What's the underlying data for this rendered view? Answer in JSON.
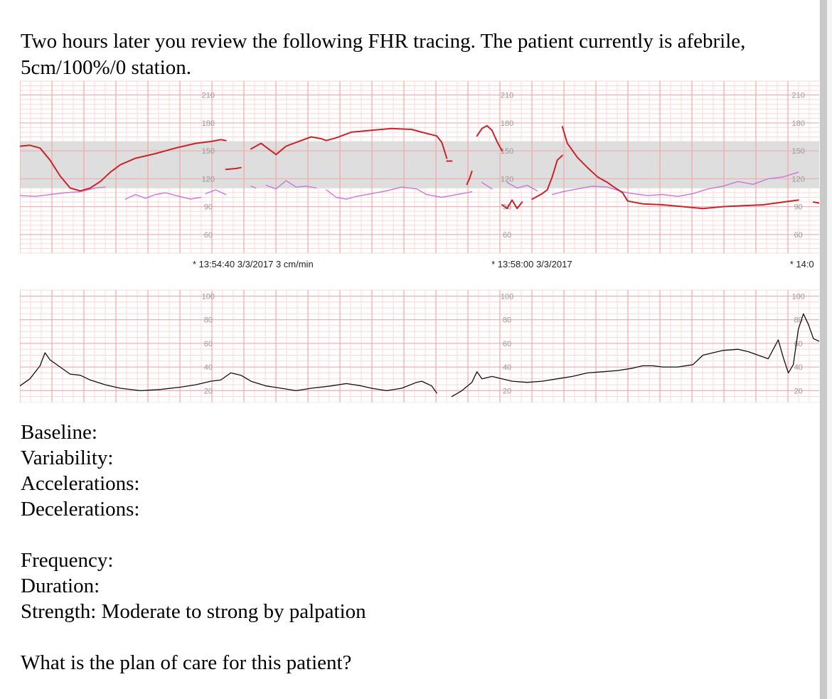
{
  "intro": {
    "line1": "Two hours later you review the following FHR tracing. The patient currently is afebrile,",
    "line2": "5cm/100%/0 station."
  },
  "questions": {
    "baseline": "Baseline:",
    "variability": "Variability:",
    "accelerations": "Accelerations:",
    "decelerations": "Decelerations:",
    "frequency": "Frequency:",
    "duration": "Duration:",
    "strength": "Strength: Moderate to strong by palpation",
    "plan": "What is the plan of care for this patient?"
  },
  "chart_data": [
    {
      "type": "line",
      "title": "",
      "ylabel": "",
      "tick_labels": [
        "210",
        "180",
        "150",
        "120",
        "90",
        "60"
      ],
      "ylim": [
        40,
        225
      ],
      "shaded_band": [
        110,
        160
      ],
      "annotations": [
        "* 13:54:40 3/3/2017  3 cm/min",
        "* 13:58:00 3/3/2017",
        "* 14:0"
      ],
      "colors": {
        "fhr": "#c8242b",
        "mhr": "#c878d8",
        "grid_major": "#f2a6a6",
        "grid_minor": "#fbd8d8",
        "band": "#dedede"
      },
      "series": [
        {
          "segments": [
            [
              [
                0,
                155
              ],
              [
                2,
                156
              ],
              [
                4,
                153
              ],
              [
                6,
                140
              ],
              [
                8,
                123
              ],
              [
                10,
                110
              ],
              [
                12,
                107
              ],
              [
                14,
                110
              ],
              [
                16,
                117
              ],
              [
                18,
                127
              ],
              [
                20,
                135
              ],
              [
                23,
                142
              ],
              [
                27,
                147
              ],
              [
                31,
                153
              ],
              [
                35,
                158
              ],
              [
                38,
                160
              ],
              [
                40,
                162
              ],
              [
                41,
                161
              ]
            ],
            [
              [
                41,
                130
              ],
              [
                43,
                131
              ],
              [
                44,
                132
              ]
            ],
            [
              [
                46,
                152
              ],
              [
                48,
                158
              ],
              [
                50,
                150
              ],
              [
                51,
                146
              ],
              [
                53,
                155
              ],
              [
                56,
                161
              ],
              [
                58,
                165
              ],
              [
                60,
                163
              ],
              [
                61,
                161
              ],
              [
                63,
                164
              ],
              [
                66,
                170
              ],
              [
                70,
                172
              ],
              [
                74,
                174
              ],
              [
                78,
                173
              ],
              [
                80,
                170
              ],
              [
                83,
                166
              ],
              [
                84,
                159
              ],
              [
                85,
                142
              ]
            ],
            [
              [
                85,
                139
              ],
              [
                86,
                139
              ]
            ],
            [
              [
                91,
                166
              ],
              [
                92,
                174
              ],
              [
                93,
                177
              ],
              [
                94,
                172
              ],
              [
                95,
                160
              ],
              [
                96,
                150
              ]
            ],
            [
              [
                89,
                114
              ],
              [
                89.5,
                120
              ],
              [
                90,
                128
              ]
            ],
            [
              [
                96,
                92
              ],
              [
                97,
                88
              ],
              [
                98,
                97
              ],
              [
                99,
                88
              ],
              [
                100,
                95
              ]
            ],
            [
              [
                102,
                98
              ],
              [
                104,
                104
              ],
              [
                105,
                108
              ],
              [
                106,
                122
              ],
              [
                107,
                140
              ],
              [
                108,
                145
              ]
            ],
            [
              [
                108,
                176
              ],
              [
                109,
                158
              ],
              [
                111,
                143
              ],
              [
                113,
                132
              ],
              [
                115,
                122
              ],
              [
                117,
                116
              ],
              [
                118,
                112
              ],
              [
                120,
                105
              ],
              [
                121,
                96
              ],
              [
                124,
                93
              ],
              [
                128,
                92
              ],
              [
                132,
                90
              ],
              [
                136,
                88
              ],
              [
                140,
                90
              ],
              [
                144,
                91
              ],
              [
                148,
                92
              ],
              [
                152,
                95
              ],
              [
                155,
                97
              ]
            ],
            [
              [
                158,
                95
              ],
              [
                160,
                93
              ]
            ]
          ]
        },
        {
          "segments": [
            [
              [
                0,
                102
              ],
              [
                3,
                101
              ],
              [
                6,
                103
              ],
              [
                9,
                105
              ],
              [
                12,
                106
              ],
              [
                15,
                110
              ],
              [
                17,
                111
              ]
            ],
            [
              [
                21,
                98
              ],
              [
                23,
                103
              ],
              [
                25,
                99
              ],
              [
                27,
                103
              ],
              [
                29,
                105
              ],
              [
                31,
                102
              ],
              [
                34,
                98
              ],
              [
                36,
                100
              ]
            ],
            [
              [
                37,
                104
              ],
              [
                39,
                108
              ],
              [
                41,
                103
              ]
            ],
            [
              [
                46,
                112
              ],
              [
                47,
                110
              ]
            ],
            [
              [
                49,
                113
              ],
              [
                51,
                109
              ],
              [
                53,
                118
              ],
              [
                55,
                111
              ],
              [
                57,
                112
              ],
              [
                59,
                110
              ]
            ],
            [
              [
                61,
                108
              ],
              [
                63,
                100
              ],
              [
                65,
                98
              ],
              [
                67,
                101
              ],
              [
                70,
                104
              ],
              [
                73,
                107
              ],
              [
                76,
                111
              ],
              [
                79,
                109
              ],
              [
                81,
                103
              ],
              [
                84,
                100
              ],
              [
                87,
                103
              ],
              [
                90,
                106
              ]
            ],
            [
              [
                92,
                116
              ],
              [
                94,
                109
              ]
            ],
            [
              [
                97,
                116
              ],
              [
                99,
                110
              ],
              [
                101,
                113
              ],
              [
                103,
                107
              ]
            ],
            [
              [
                106,
                103
              ],
              [
                108,
                106
              ],
              [
                111,
                109
              ],
              [
                114,
                112
              ],
              [
                117,
                111
              ],
              [
                120,
                106
              ],
              [
                122,
                104
              ],
              [
                125,
                102
              ],
              [
                128,
                103
              ],
              [
                131,
                101
              ],
              [
                134,
                104
              ],
              [
                137,
                109
              ],
              [
                140,
                112
              ],
              [
                143,
                117
              ],
              [
                146,
                114
              ],
              [
                149,
                120
              ],
              [
                152,
                122
              ],
              [
                155,
                127
              ]
            ]
          ]
        }
      ]
    },
    {
      "type": "line",
      "title": "",
      "ylabel": "",
      "tick_labels": [
        "100",
        "80",
        "60",
        "40",
        "20"
      ],
      "ylim": [
        10,
        105
      ],
      "colors": {
        "uc": "#111111"
      },
      "series": [
        {
          "segments": [
            [
              [
                0,
                24
              ],
              [
                2,
                30
              ],
              [
                4,
                41
              ],
              [
                5,
                52
              ],
              [
                6,
                46
              ],
              [
                8,
                40
              ],
              [
                10,
                34
              ],
              [
                12,
                33
              ],
              [
                14,
                29
              ],
              [
                17,
                25
              ],
              [
                20,
                22
              ],
              [
                24,
                20
              ],
              [
                28,
                21
              ],
              [
                32,
                23
              ],
              [
                35,
                25
              ],
              [
                38,
                28
              ],
              [
                40,
                29
              ],
              [
                42,
                35
              ],
              [
                44,
                33
              ],
              [
                46,
                28
              ],
              [
                49,
                24
              ],
              [
                52,
                22
              ],
              [
                55,
                20
              ],
              [
                58,
                22
              ],
              [
                62,
                24
              ],
              [
                65,
                26
              ],
              [
                68,
                24
              ],
              [
                70,
                22
              ],
              [
                73,
                20
              ],
              [
                76,
                22
              ],
              [
                79,
                27
              ],
              [
                80,
                28
              ],
              [
                82,
                24
              ],
              [
                83,
                18
              ]
            ],
            [
              [
                86,
                15
              ],
              [
                88,
                20
              ],
              [
                90,
                27
              ],
              [
                91,
                36
              ],
              [
                92,
                30
              ],
              [
                94,
                32
              ],
              [
                96,
                30
              ],
              [
                98,
                28
              ],
              [
                101,
                27
              ],
              [
                104,
                28
              ],
              [
                107,
                30
              ],
              [
                110,
                32
              ],
              [
                113,
                35
              ],
              [
                116,
                36
              ],
              [
                119,
                37
              ],
              [
                122,
                39
              ],
              [
                124,
                41
              ],
              [
                126,
                41
              ],
              [
                128,
                40
              ],
              [
                131,
                40
              ],
              [
                134,
                42
              ],
              [
                136,
                50
              ],
              [
                138,
                52
              ],
              [
                140,
                54
              ],
              [
                143,
                55
              ],
              [
                145,
                53
              ],
              [
                147,
                50
              ],
              [
                149,
                47
              ],
              [
                150,
                55
              ],
              [
                151,
                63
              ],
              [
                152,
                48
              ],
              [
                153,
                35
              ],
              [
                154,
                42
              ],
              [
                155,
                72
              ],
              [
                156,
                85
              ],
              [
                157,
                76
              ],
              [
                158,
                64
              ],
              [
                160,
                60
              ]
            ]
          ]
        }
      ]
    }
  ]
}
